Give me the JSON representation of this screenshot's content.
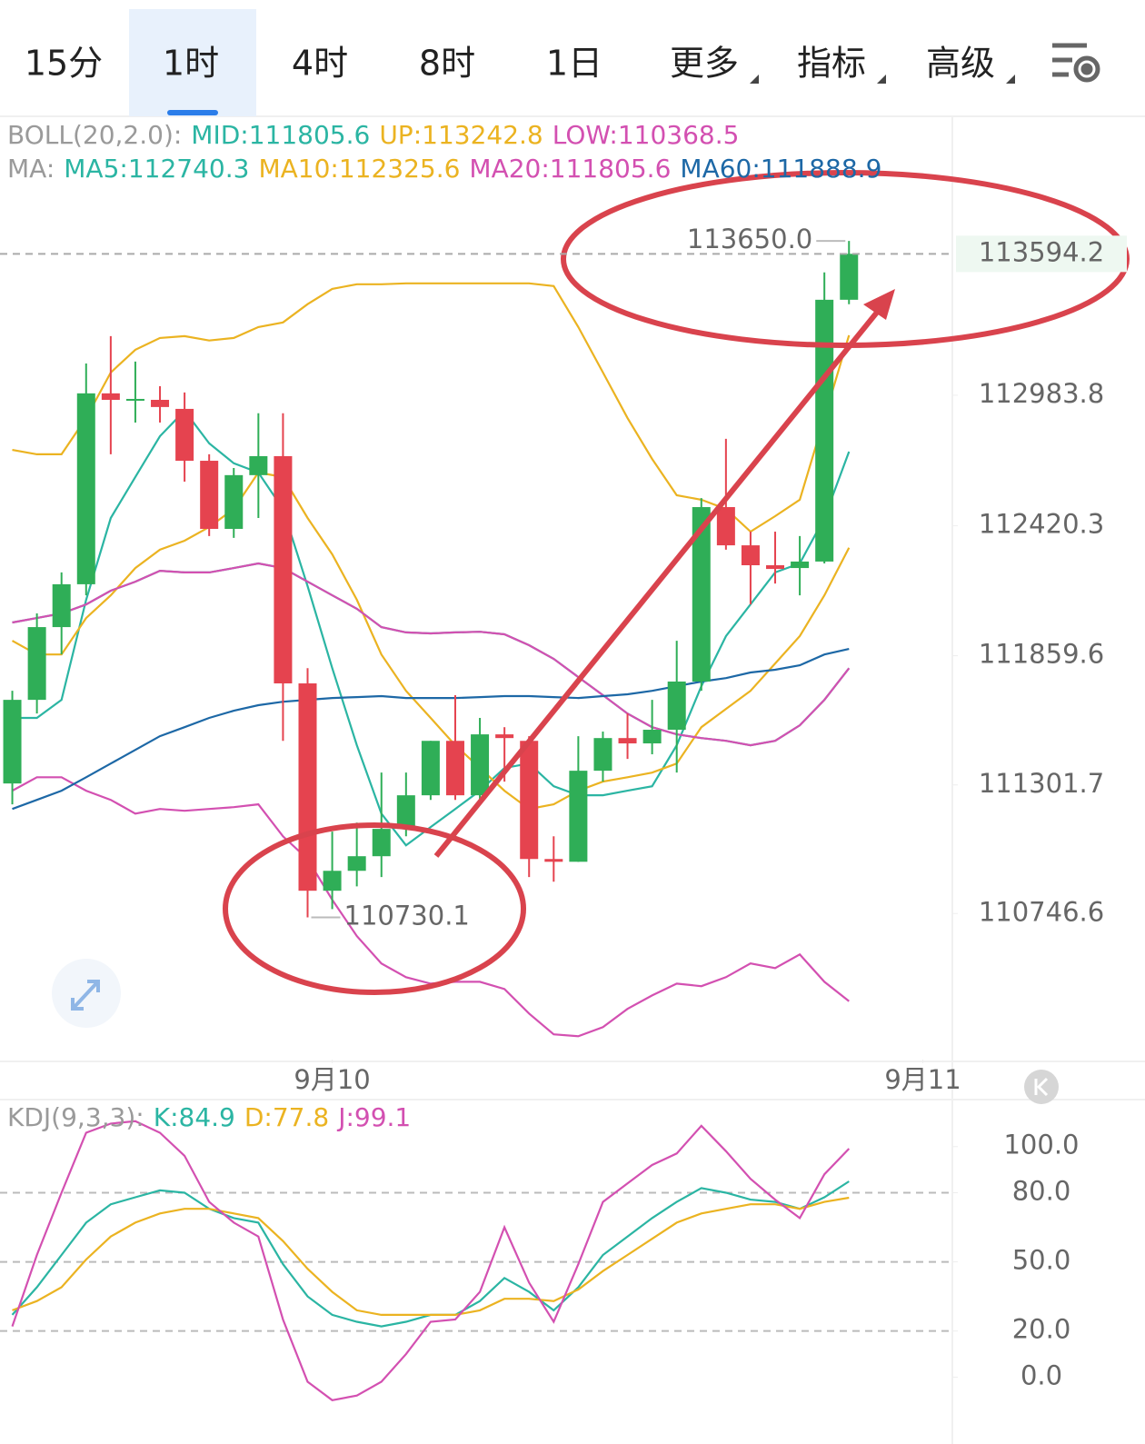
{
  "tabs": {
    "items": [
      "15分",
      "1时",
      "4时",
      "8时",
      "1日"
    ],
    "dropdowns": [
      "更多",
      "指标",
      "高级"
    ],
    "active": 1
  },
  "chart_data": [
    {
      "type": "candlestick",
      "xlim": [
        -0.5,
        38.2
      ],
      "xticks": [
        {
          "value": 13,
          "label": "9月10"
        },
        {
          "value": 37,
          "label": "9月11"
        }
      ],
      "ylim": [
        110120,
        114180
      ],
      "yticks": [
        110746.6,
        111301.7,
        111859.6,
        112420.3,
        112983.8
      ],
      "up_color": "#2fae57",
      "down_color": "#e5434f",
      "open": [
        111308,
        111669,
        111983,
        112168,
        112992,
        112964,
        112964,
        112925,
        112701,
        112407,
        112639,
        112721,
        111740,
        110845,
        110931,
        110994,
        111112,
        111257,
        111492,
        111257,
        111520,
        111492,
        110982,
        110970,
        111363,
        111504,
        111481,
        111540,
        111748,
        112501,
        112336,
        112250,
        112238,
        112266,
        113396
      ],
      "high": [
        111708,
        112042,
        112219,
        113121,
        113239,
        113129,
        113023,
        112996,
        112729,
        112670,
        112906,
        112906,
        111806,
        111100,
        111139,
        111355,
        111355,
        111492,
        111689,
        111591,
        111551,
        111512,
        111080,
        111512,
        111532,
        111610,
        111669,
        111924,
        112540,
        112796,
        112395,
        112395,
        112376,
        113514,
        113650
      ],
      "low": [
        111218,
        111610,
        111865,
        112120,
        112729,
        112866,
        112866,
        112611,
        112376,
        112368,
        112454,
        111492,
        110730.1,
        110766,
        110864,
        110904,
        111080,
        111237,
        111237,
        111237,
        111316,
        110904,
        110884,
        110970,
        111316,
        111414,
        111434,
        111355,
        111708,
        112317,
        112081,
        112171,
        112120,
        112258,
        113377
      ],
      "close": [
        111669,
        111983,
        112168,
        112992,
        112964,
        112968,
        112933,
        112701,
        112407,
        112639,
        112721,
        111740,
        110845,
        110931,
        110994,
        111112,
        111257,
        111492,
        111257,
        111520,
        111504,
        110982,
        110970,
        111363,
        111504,
        111481,
        111540,
        111748,
        112501,
        112336,
        112250,
        112234,
        112266,
        113396,
        113594.2
      ],
      "last_price": 113594.2,
      "annotations": [
        {
          "x": 34,
          "value": 113650,
          "label": "113650.0",
          "side": "left"
        },
        {
          "x": 12,
          "value": 110730.1,
          "side": "right"
        }
      ],
      "indicators": [
        {
          "label": "BOLL(20,2.0):",
          "series": [
            {
              "name": "MID:111805.6",
              "color": "#2bb5a3",
              "values": [
                112003,
                112022,
                112042,
                112081,
                112140,
                112179,
                112226,
                112219,
                112219,
                112238,
                112258,
                112238,
                112179,
                112120,
                112062,
                111983,
                111960,
                111956,
                111960,
                111963,
                111952,
                111905,
                111846,
                111767,
                111689,
                111610,
                111551,
                111520,
                111504,
                111492,
                111473,
                111492,
                111559,
                111669,
                111805.6
              ]
            },
            {
              "name": "UP:113242.8",
              "color": "#ebb321",
              "values": [
                112748,
                112729,
                112729,
                112886,
                113082,
                113180,
                113231,
                113239,
                113220,
                113231,
                113278,
                113298,
                113377,
                113443,
                113463,
                113463,
                113467,
                113467,
                113467,
                113467,
                113467,
                113467,
                113455,
                113278,
                113082,
                112886,
                112709,
                112552,
                112533,
                112493,
                112395,
                112462,
                112533,
                112886,
                113242.8
              ]
            },
            {
              "name": "LOW:110368.5",
              "color": "#d350b1",
              "values": [
                111277,
                111335,
                111335,
                111277,
                111237,
                111178,
                111198,
                111190,
                111198,
                111206,
                111218,
                111080,
                110982,
                110806,
                110649,
                110531,
                110472,
                110444,
                110452,
                110452,
                110421,
                110315,
                110225,
                110217,
                110256,
                110335,
                110393,
                110444,
                110433,
                110472,
                110531,
                110511,
                110570,
                110452,
                110368.5
              ]
            }
          ]
        },
        {
          "label": "MA:",
          "series": [
            {
              "name": "MA5:112740.3",
              "color": "#2bb5a3",
              "values": [
                111591,
                111591,
                111669,
                112101,
                112454,
                112631,
                112807,
                112917,
                112776,
                112690,
                112650,
                112493,
                112160,
                111806,
                111473,
                111178,
                111041,
                111120,
                111198,
                111277,
                111375,
                111394,
                111296,
                111257,
                111257,
                111277,
                111296,
                111473,
                111728,
                111944,
                112081,
                112219,
                112258,
                112454,
                112740.3
              ]
            },
            {
              "name": "MA10:112325.6",
              "color": "#ebb321",
              "values": [
                111924,
                111865,
                111865,
                112022,
                112120,
                112238,
                112317,
                112356,
                112415,
                112493,
                112650,
                112631,
                112454,
                112297,
                112101,
                111865,
                111708,
                111591,
                111473,
                111375,
                111277,
                111198,
                111218,
                111277,
                111316,
                111335,
                111355,
                111394,
                111551,
                111630,
                111708,
                111826,
                111944,
                112120,
                112325.6
              ]
            },
            {
              "name": "MA20:111805.6",
              "color": "#d350b1",
              "values": [
                112003,
                112022,
                112042,
                112081,
                112140,
                112179,
                112226,
                112219,
                112219,
                112238,
                112258,
                112238,
                112179,
                112120,
                112062,
                111983,
                111960,
                111956,
                111960,
                111963,
                111952,
                111905,
                111846,
                111767,
                111689,
                111610,
                111551,
                111520,
                111504,
                111492,
                111473,
                111492,
                111559,
                111669,
                111805.6
              ]
            },
            {
              "name": "MA60:111888.9",
              "color": "#1d68a6",
              "values": [
                111198,
                111237,
                111277,
                111335,
                111394,
                111453,
                111512,
                111551,
                111591,
                111622,
                111646,
                111661,
                111669,
                111677,
                111681,
                111685,
                111677,
                111677,
                111677,
                111681,
                111685,
                111685,
                111681,
                111677,
                111685,
                111693,
                111708,
                111728,
                111748,
                111763,
                111787,
                111799,
                111818,
                111865,
                111888.9
              ]
            }
          ]
        }
      ]
    },
    {
      "type": "line",
      "xlim": [
        -0.5,
        38.2
      ],
      "ylim": [
        -29,
        119.6
      ],
      "yticks": [
        {
          "value": 0,
          "label": "0.0"
        },
        {
          "value": 20,
          "label": "20.0"
        },
        {
          "value": 50,
          "label": "50.0"
        },
        {
          "value": 80,
          "label": "80.0"
        },
        {
          "value": 100,
          "label": "100.0"
        }
      ],
      "reference_lines": [
        20,
        50,
        80
      ],
      "indicators": [
        {
          "label": "KDJ(9,3,3):",
          "series": [
            {
              "name": "K:84.9",
              "color": "#2bb5a3",
              "values": [
                27,
                39,
                53,
                67,
                75,
                78,
                81,
                80,
                73,
                69,
                67,
                49,
                35,
                27,
                24,
                22,
                24,
                27,
                27,
                33,
                43,
                37,
                29,
                39,
                53,
                61,
                69,
                76,
                82,
                80,
                77,
                76,
                73,
                78,
                84.9
              ]
            },
            {
              "name": "D:77.8",
              "color": "#ebb321",
              "values": [
                29,
                33,
                39,
                51,
                61,
                67,
                71,
                73,
                73,
                71,
                69,
                59,
                47,
                37,
                29,
                27,
                27,
                27,
                27,
                29,
                34,
                34,
                33,
                38,
                46,
                53,
                60,
                67,
                71,
                73,
                75,
                75,
                73,
                76,
                77.8
              ]
            },
            {
              "name": "J:99.1",
              "color": "#d350b1",
              "values": [
                22,
                53,
                80,
                106,
                110,
                111,
                106,
                96,
                76,
                67,
                61,
                25,
                -2,
                -10,
                -8,
                -2,
                10,
                24,
                25,
                37,
                65,
                41,
                24,
                49,
                76,
                84,
                92,
                97,
                109,
                98,
                86,
                77,
                69,
                88,
                99.1
              ]
            }
          ]
        }
      ]
    }
  ]
}
